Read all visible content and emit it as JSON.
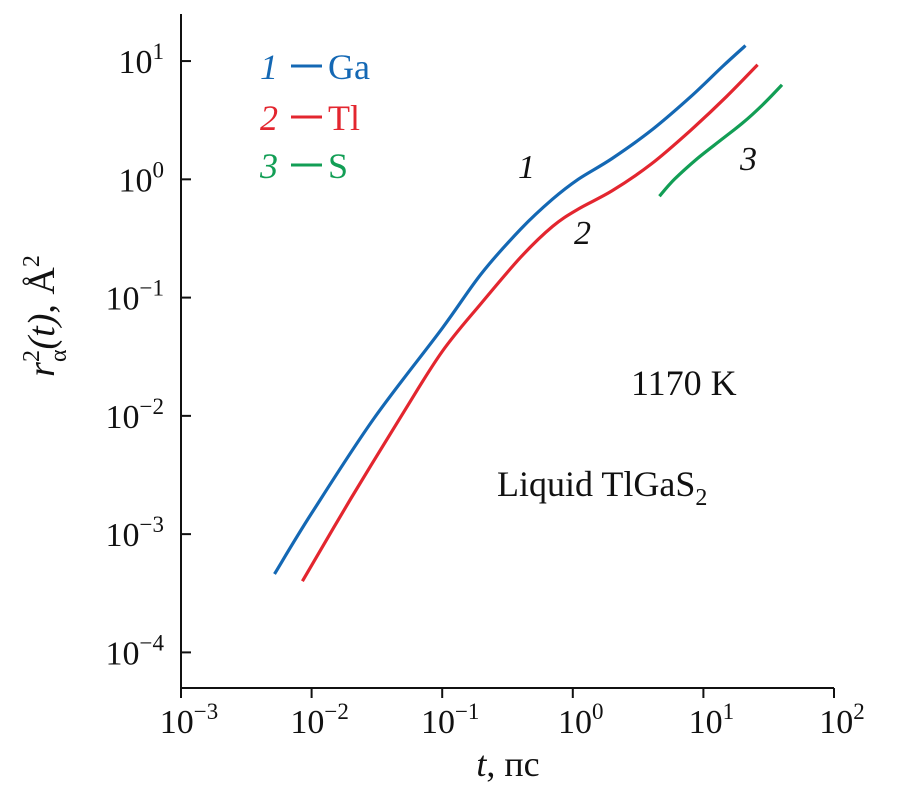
{
  "chart_data": {
    "type": "line",
    "title": "",
    "xlabel": {
      "var": "t",
      "unit": ", пс"
    },
    "ylabel": {
      "base": "r",
      "sup": "2",
      "sub": "α",
      "paren": "(t)",
      "unit": ", Å",
      "unit_sup": "2"
    },
    "xscale": "log",
    "yscale": "log",
    "xlim": [
      0.001,
      100
    ],
    "ylim": [
      5e-05,
      25
    ],
    "x_ticks": [
      {
        "value": 0.001,
        "base": "10",
        "exp": "−3"
      },
      {
        "value": 0.01,
        "base": "10",
        "exp": "−2"
      },
      {
        "value": 0.1,
        "base": "10",
        "exp": "−1"
      },
      {
        "value": 1,
        "base": "10",
        "exp": "0"
      },
      {
        "value": 10,
        "base": "10",
        "exp": "1"
      },
      {
        "value": 100,
        "base": "10",
        "exp": "2"
      }
    ],
    "y_ticks": [
      {
        "value": 0.0001,
        "base": "10",
        "exp": "−4"
      },
      {
        "value": 0.001,
        "base": "10",
        "exp": "−3"
      },
      {
        "value": 0.01,
        "base": "10",
        "exp": "−2"
      },
      {
        "value": 0.1,
        "base": "10",
        "exp": "−1"
      },
      {
        "value": 1,
        "base": "10",
        "exp": "0"
      },
      {
        "value": 10,
        "base": "10",
        "exp": "1"
      }
    ],
    "series": [
      {
        "id": "1",
        "name": "Ga",
        "color": "#1468b4",
        "curve_label": "1",
        "points": [
          [
            0.0052,
            0.00046
          ],
          [
            0.01,
            0.0015
          ],
          [
            0.03,
            0.0095
          ],
          [
            0.1,
            0.055
          ],
          [
            0.2,
            0.16
          ],
          [
            0.4,
            0.38
          ],
          [
            0.7,
            0.68
          ],
          [
            1.1,
            1.0
          ],
          [
            2,
            1.5
          ],
          [
            4,
            2.6
          ],
          [
            8,
            5.0
          ],
          [
            14,
            9.0
          ],
          [
            21,
            13.5
          ]
        ]
      },
      {
        "id": "2",
        "name": "Tl",
        "color": "#e3262f",
        "curve_label": "2",
        "points": [
          [
            0.0085,
            0.0004
          ],
          [
            0.02,
            0.002
          ],
          [
            0.05,
            0.0105
          ],
          [
            0.1,
            0.035
          ],
          [
            0.2,
            0.09
          ],
          [
            0.4,
            0.22
          ],
          [
            0.7,
            0.4
          ],
          [
            1.1,
            0.56
          ],
          [
            2,
            0.8
          ],
          [
            4,
            1.35
          ],
          [
            8,
            2.6
          ],
          [
            15,
            5.0
          ],
          [
            26,
            9.3
          ]
        ]
      },
      {
        "id": "3",
        "name": "S",
        "color": "#129e55",
        "curve_label": "3",
        "points": [
          [
            4.6,
            0.72
          ],
          [
            6,
            1.0
          ],
          [
            9,
            1.5
          ],
          [
            14,
            2.2
          ],
          [
            20,
            3.0
          ],
          [
            28,
            4.2
          ],
          [
            40,
            6.3
          ]
        ]
      }
    ],
    "legend": {
      "position": "top-left",
      "entries": [
        {
          "num": "1",
          "label": "Ga",
          "color": "#1468b4"
        },
        {
          "num": "2",
          "label": "Tl",
          "color": "#e3262f"
        },
        {
          "num": "3",
          "label": "S",
          "color": "#129e55"
        }
      ]
    },
    "annotations": {
      "temperature": "1170 K",
      "substance": {
        "text": "Liquid TlGaS",
        "sub": "2"
      }
    }
  }
}
